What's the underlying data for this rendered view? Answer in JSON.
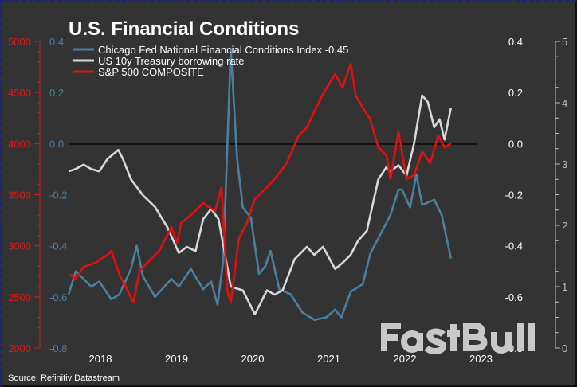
{
  "chart_data": {
    "type": "line",
    "title": "U.S. Financial Conditions",
    "source": "Source: Refinitiv Datastream",
    "watermark": "FastBull",
    "x_ticks": [
      "2018",
      "2019",
      "2020",
      "2021",
      "2022",
      "2023"
    ],
    "axes": {
      "sp500_left": {
        "range": [
          2000,
          5000
        ],
        "ticks": [
          "2000",
          "2500",
          "3000",
          "3500",
          "4000",
          "4500",
          "5000"
        ],
        "color": "#d81b1b"
      },
      "nfci_left": {
        "range": [
          -0.8,
          0.4
        ],
        "ticks": [
          "-0.8",
          "-0.6",
          "-0.4",
          "-0.2",
          "0.0",
          "0.2",
          "0.4"
        ],
        "color": "#4a7fa0"
      },
      "nfci_right": {
        "range": [
          -0.8,
          0.4
        ],
        "ticks": [
          "-0.8",
          "-0.6",
          "-0.4",
          "-0.2",
          "0.0",
          "0.2",
          "0.4"
        ],
        "color": "#ffffff"
      },
      "rate_right": {
        "range": [
          0,
          5
        ],
        "ticks": [
          "0",
          "1",
          "2",
          "3",
          "4",
          "5"
        ],
        "color": "#bbbbbb"
      }
    },
    "zero_line": 0.0,
    "grid": false,
    "legend_placement": "top-left",
    "series": [
      {
        "name": "Chicago Fed National Financial Conditions Index -0.45",
        "axis": "nfci_left",
        "color": "#4a7fa0",
        "points": [
          [
            "2017-08-01",
            -0.59
          ],
          [
            "2017-09-04",
            -0.5
          ],
          [
            "2017-10-12",
            -0.53
          ],
          [
            "2017-11-18",
            -0.56
          ],
          [
            "2017-12-26",
            -0.54
          ],
          [
            "2018-02-23",
            -0.61
          ],
          [
            "2018-04-01",
            -0.59
          ],
          [
            "2018-05-26",
            -0.49
          ],
          [
            "2018-06-23",
            -0.4
          ],
          [
            "2018-07-23",
            -0.52
          ],
          [
            "2018-09-20",
            -0.6
          ],
          [
            "2018-12-07",
            -0.53
          ],
          [
            "2019-01-12",
            -0.56
          ],
          [
            "2019-03-09",
            -0.49
          ],
          [
            "2019-05-07",
            -0.57
          ],
          [
            "2019-06-15",
            -0.54
          ],
          [
            "2019-07-15",
            -0.63
          ],
          [
            "2019-08-12",
            -0.46
          ],
          [
            "2019-09-18",
            0.37
          ],
          [
            "2019-10-18",
            -0.06
          ],
          [
            "2019-11-15",
            -0.25
          ],
          [
            "2019-12-23",
            -0.29
          ],
          [
            "2020-02-01",
            -0.51
          ],
          [
            "2020-03-01",
            -0.48
          ],
          [
            "2020-03-26",
            -0.42
          ],
          [
            "2020-05-07",
            -0.57
          ],
          [
            "2020-07-01",
            -0.59
          ],
          [
            "2020-08-26",
            -0.66
          ],
          [
            "2020-10-23",
            -0.69
          ],
          [
            "2020-12-20",
            -0.68
          ],
          [
            "2021-02-01",
            -0.65
          ],
          [
            "2021-03-01",
            -0.68
          ],
          [
            "2021-04-15",
            -0.58
          ],
          [
            "2021-06-12",
            -0.55
          ],
          [
            "2021-07-18",
            -0.43
          ],
          [
            "2021-09-15",
            -0.34
          ],
          [
            "2021-10-23",
            -0.28
          ],
          [
            "2021-12-01",
            -0.18
          ],
          [
            "2021-12-18",
            -0.18
          ],
          [
            "2022-01-26",
            -0.25
          ],
          [
            "2022-02-26",
            -0.12
          ],
          [
            "2022-03-23",
            -0.24
          ],
          [
            "2022-05-20",
            -0.22
          ],
          [
            "2022-06-26",
            -0.28
          ],
          [
            "2022-08-09",
            -0.45
          ]
        ]
      },
      {
        "name": "US 10y Treasury borrowing rate",
        "axis": "rate_right",
        "color": "#d9d9d9",
        "points": [
          [
            "2017-08-01",
            2.88
          ],
          [
            "2017-09-04",
            2.92
          ],
          [
            "2017-10-12",
            2.99
          ],
          [
            "2017-11-18",
            2.92
          ],
          [
            "2017-12-26",
            2.88
          ],
          [
            "2018-02-04",
            3.08
          ],
          [
            "2018-03-26",
            3.23
          ],
          [
            "2018-04-18",
            3.08
          ],
          [
            "2018-05-26",
            2.75
          ],
          [
            "2018-07-23",
            2.49
          ],
          [
            "2018-09-20",
            2.3
          ],
          [
            "2018-11-18",
            1.97
          ],
          [
            "2019-01-12",
            1.55
          ],
          [
            "2019-02-20",
            1.65
          ],
          [
            "2019-04-01",
            1.58
          ],
          [
            "2019-05-07",
            2.1
          ],
          [
            "2019-06-15",
            2.27
          ],
          [
            "2019-07-20",
            2.1
          ],
          [
            "2019-09-01",
            1.32
          ],
          [
            "2019-09-18",
            1.0
          ],
          [
            "2019-11-15",
            0.94
          ],
          [
            "2020-01-12",
            0.55
          ],
          [
            "2020-03-09",
            0.94
          ],
          [
            "2020-04-15",
            0.87
          ],
          [
            "2020-05-23",
            0.94
          ],
          [
            "2020-07-20",
            1.45
          ],
          [
            "2020-09-18",
            1.65
          ],
          [
            "2020-10-23",
            1.52
          ],
          [
            "2020-12-04",
            1.65
          ],
          [
            "2021-02-01",
            1.29
          ],
          [
            "2021-03-07",
            1.39
          ],
          [
            "2021-04-15",
            1.52
          ],
          [
            "2021-05-20",
            1.75
          ],
          [
            "2021-07-01",
            1.91
          ],
          [
            "2021-08-26",
            2.75
          ],
          [
            "2021-10-04",
            2.95
          ],
          [
            "2021-10-23",
            2.88
          ],
          [
            "2021-12-01",
            2.98
          ],
          [
            "2022-01-09",
            2.81
          ],
          [
            "2022-02-15",
            3.34
          ],
          [
            "2022-03-23",
            4.12
          ],
          [
            "2022-04-20",
            4.01
          ],
          [
            "2022-05-20",
            3.6
          ],
          [
            "2022-06-15",
            3.73
          ],
          [
            "2022-07-09",
            3.4
          ],
          [
            "2022-08-09",
            3.92
          ]
        ]
      },
      {
        "name": "S&P 500 COMPOSITE",
        "axis": "sp500_left",
        "color": "#e01010",
        "points": [
          [
            "2017-08-07",
            2717
          ],
          [
            "2017-09-04",
            2679
          ],
          [
            "2017-10-12",
            2795
          ],
          [
            "2017-12-07",
            2834
          ],
          [
            "2018-02-04",
            2911
          ],
          [
            "2018-02-23",
            2950
          ],
          [
            "2018-04-01",
            2717
          ],
          [
            "2018-05-01",
            2600
          ],
          [
            "2018-06-07",
            2444
          ],
          [
            "2018-07-07",
            2756
          ],
          [
            "2018-09-01",
            2873
          ],
          [
            "2018-10-09",
            2950
          ],
          [
            "2018-12-07",
            3184
          ],
          [
            "2019-01-04",
            3028
          ],
          [
            "2019-01-23",
            3223
          ],
          [
            "2019-03-09",
            3300
          ],
          [
            "2019-05-07",
            3418
          ],
          [
            "2019-07-04",
            3340
          ],
          [
            "2019-08-04",
            3574
          ],
          [
            "2019-09-01",
            2560
          ],
          [
            "2019-09-18",
            2444
          ],
          [
            "2019-10-26",
            3067
          ],
          [
            "2019-12-04",
            3223
          ],
          [
            "2020-01-12",
            3457
          ],
          [
            "2020-03-09",
            3574
          ],
          [
            "2020-04-15",
            3652
          ],
          [
            "2020-06-12",
            3808
          ],
          [
            "2020-08-09",
            4080
          ],
          [
            "2020-09-18",
            4158
          ],
          [
            "2020-10-23",
            4313
          ],
          [
            "2020-12-04",
            4485
          ],
          [
            "2021-02-01",
            4680
          ],
          [
            "2021-03-07",
            4547
          ],
          [
            "2021-04-15",
            4781
          ],
          [
            "2021-05-09",
            4469
          ],
          [
            "2021-06-12",
            4352
          ],
          [
            "2021-07-18",
            4236
          ],
          [
            "2021-08-26",
            3963
          ],
          [
            "2021-10-04",
            3885
          ],
          [
            "2021-10-23",
            3652
          ],
          [
            "2021-12-01",
            4119
          ],
          [
            "2022-01-09",
            3652
          ],
          [
            "2022-02-15",
            3691
          ],
          [
            "2022-03-23",
            3924
          ],
          [
            "2022-05-01",
            3808
          ],
          [
            "2022-06-09",
            4080
          ],
          [
            "2022-07-09",
            3963
          ],
          [
            "2022-08-09",
            4002
          ]
        ]
      }
    ]
  }
}
